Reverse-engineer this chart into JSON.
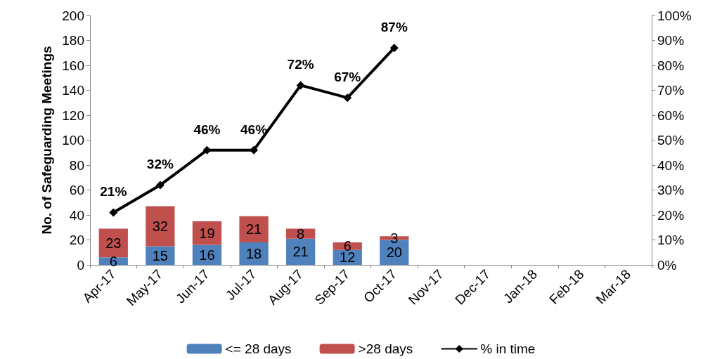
{
  "chart_data": {
    "type": "bar",
    "stacked": true,
    "ylabel": "No. of Safeguarding Meetings",
    "categories": [
      "Apr-17",
      "May-17",
      "Jun-17",
      "Jul-17",
      "Aug-17",
      "Sep-17",
      "Oct-17",
      "Nov-17",
      "Dec-17",
      "Jan-18",
      "Feb-18",
      "Mar-18"
    ],
    "series": [
      {
        "name": "<= 28 days",
        "color": "#4f81bd",
        "values": [
          6,
          15,
          16,
          18,
          21,
          12,
          20,
          null,
          null,
          null,
          null,
          null
        ],
        "value_labels": [
          "6",
          "15",
          "16",
          "18",
          "21",
          "12",
          "20",
          null,
          null,
          null,
          null,
          null
        ]
      },
      {
        "name": ">28 days",
        "color": "#c0504d",
        "values": [
          23,
          32,
          19,
          21,
          8,
          6,
          3,
          null,
          null,
          null,
          null,
          null
        ],
        "value_labels": [
          "23",
          "32",
          "19",
          "21",
          "8",
          "6",
          "3",
          null,
          null,
          null,
          null,
          null
        ]
      },
      {
        "name": "% in time",
        "type": "line",
        "axis": "y2",
        "color": "#000000",
        "marker": "diamond",
        "values": [
          21,
          32,
          46,
          46,
          72,
          67,
          87,
          null,
          null,
          null,
          null,
          null
        ],
        "value_labels": [
          "21%",
          "32%",
          "46%",
          "46%",
          "72%",
          "67%",
          "87%",
          null,
          null,
          null,
          null,
          null
        ]
      }
    ],
    "ylim": [
      0,
      200
    ],
    "yticks": [
      0,
      20,
      40,
      60,
      80,
      100,
      120,
      140,
      160,
      180,
      200
    ],
    "y2lim": [
      0,
      100
    ],
    "y2ticks": [
      {
        "value": 0,
        "label": "0%"
      },
      {
        "value": 10,
        "label": "10%"
      },
      {
        "value": 20,
        "label": "20%"
      },
      {
        "value": 30,
        "label": "30%"
      },
      {
        "value": 40,
        "label": "40%"
      },
      {
        "value": 50,
        "label": "50%"
      },
      {
        "value": 60,
        "label": "60%"
      },
      {
        "value": 70,
        "label": "70%"
      },
      {
        "value": 80,
        "label": "80%"
      },
      {
        "value": 90,
        "label": "90%"
      },
      {
        "value": 100,
        "label": "100%"
      }
    ],
    "grid": false,
    "legend": "bottom"
  }
}
